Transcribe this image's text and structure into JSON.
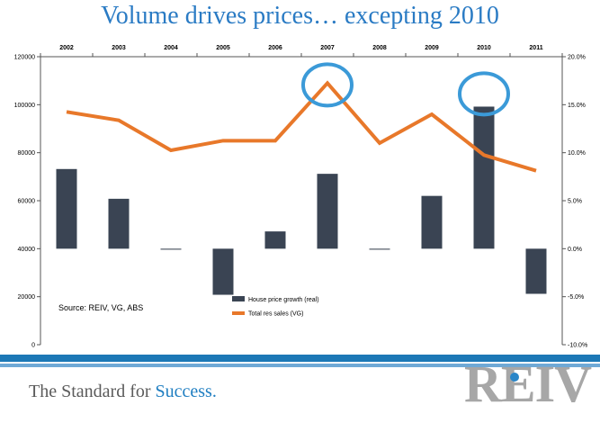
{
  "title": "Volume drives prices… excepting 2010",
  "chart_data": {
    "type": "bar+line",
    "categories": [
      "2002",
      "2003",
      "2004",
      "2005",
      "2006",
      "2007",
      "2008",
      "2009",
      "2010",
      "2011"
    ],
    "series": [
      {
        "name": "House price growth (real)",
        "type": "bar",
        "axis": "right",
        "unit": "%",
        "values": [
          8.3,
          5.2,
          -0.1,
          -4.8,
          1.8,
          7.8,
          -0.1,
          5.5,
          14.8,
          -4.7
        ]
      },
      {
        "name": "Total res sales (VG)",
        "type": "line",
        "axis": "left",
        "values": [
          97000,
          93500,
          81000,
          85000,
          85000,
          109000,
          84000,
          96000,
          79000,
          72500
        ]
      }
    ],
    "y_left": {
      "min": 0,
      "max": 120000,
      "ticks": [
        "0",
        "20000",
        "40000",
        "60000",
        "80000",
        "100000",
        "120000"
      ]
    },
    "y_right": {
      "min": -10,
      "max": 20,
      "ticks": [
        "-10.0%",
        "-5.0%",
        "0.0%",
        "5.0%",
        "10.0%",
        "15.0%",
        "20.0%"
      ]
    },
    "highlighted_years": [
      "2007",
      "2010"
    ],
    "source_note": "Source: REIV, VG, ABS",
    "legend": [
      "House price growth (real)",
      "Total res sales (VG)"
    ],
    "colors": {
      "bar": "#3a4453",
      "line": "#e8782a",
      "highlight": "#3b9ad8"
    }
  },
  "footer": {
    "tagline_prefix": "The Standard for ",
    "tagline_accent": "Success.",
    "logo_text": "REIV"
  }
}
